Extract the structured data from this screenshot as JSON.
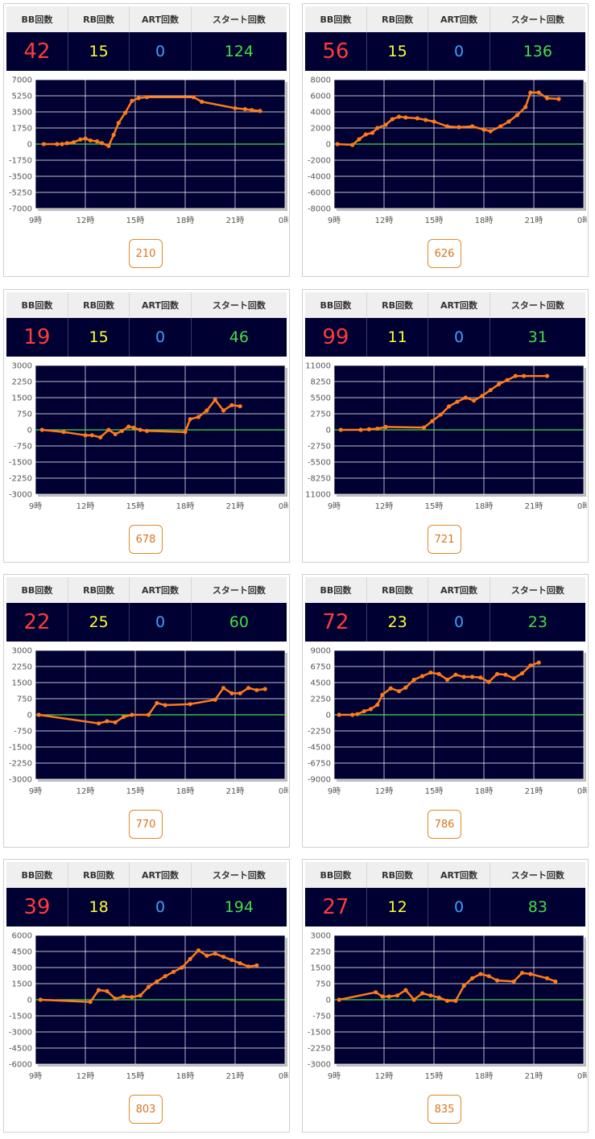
{
  "headers": {
    "bb": "BB回数",
    "rb": "RB回数",
    "art": "ART回数",
    "start": "スタート回数"
  },
  "colors": {
    "bb": "#ff3b3b",
    "rb": "#ffff33",
    "art": "#3aa0ff",
    "start": "#44dd44",
    "line": "#ff7a1a",
    "zero_line": "#44dd44",
    "plot_bg": "#000033",
    "grid": "#ffffff"
  },
  "machines": [
    {
      "bb": "42",
      "rb": "15",
      "art": "0",
      "start": "124",
      "game": "210"
    },
    {
      "bb": "56",
      "rb": "15",
      "art": "0",
      "start": "136",
      "game": "626"
    },
    {
      "bb": "19",
      "rb": "15",
      "art": "0",
      "start": "46",
      "game": "678"
    },
    {
      "bb": "99",
      "rb": "11",
      "art": "0",
      "start": "31",
      "game": "721"
    },
    {
      "bb": "22",
      "rb": "25",
      "art": "0",
      "start": "60",
      "game": "770"
    },
    {
      "bb": "72",
      "rb": "23",
      "art": "0",
      "start": "23",
      "game": "786"
    },
    {
      "bb": "39",
      "rb": "18",
      "art": "0",
      "start": "194",
      "game": "803"
    },
    {
      "bb": "27",
      "rb": "12",
      "art": "0",
      "start": "83",
      "game": "835"
    }
  ],
  "chart_data": [
    {
      "type": "line",
      "xlim": [
        9,
        24
      ],
      "x_ticks": [
        "9時",
        "12時",
        "15時",
        "18時",
        "21時",
        "0時"
      ],
      "ylim": [
        -7000,
        7000
      ],
      "y_ticks": [
        "7000",
        "5250",
        "3500",
        "1750",
        "0",
        "-1750",
        "-3500",
        "-5250",
        "-7000"
      ],
      "x": [
        9.5,
        10.3,
        10.6,
        10.9,
        11.3,
        11.7,
        12.0,
        12.3,
        12.7,
        13.0,
        13.4,
        13.7,
        14.0,
        14.4,
        14.8,
        15.2,
        15.7,
        18.5,
        19.0,
        21.0,
        21.6,
        22.0,
        22.5
      ],
      "y": [
        0,
        0,
        0,
        100,
        200,
        500,
        600,
        400,
        300,
        100,
        -200,
        1000,
        2300,
        3400,
        4700,
        5000,
        5100,
        5100,
        4600,
        3900,
        3800,
        3700,
        3600
      ]
    },
    {
      "type": "line",
      "xlim": [
        9,
        24
      ],
      "x_ticks": [
        "9時",
        "12時",
        "15時",
        "18時",
        "21時",
        "0時"
      ],
      "ylim": [
        -8000,
        8000
      ],
      "y_ticks": [
        "8000",
        "6000",
        "4000",
        "2000",
        "0",
        "-2000",
        "-4000",
        "-6000",
        "-8000"
      ],
      "x": [
        9.2,
        10.1,
        10.5,
        10.9,
        11.3,
        11.6,
        12.1,
        12.5,
        12.9,
        13.3,
        14.0,
        14.5,
        15.0,
        15.8,
        16.5,
        17.3,
        18.0,
        18.4,
        19.0,
        19.5,
        20.0,
        20.5,
        20.8,
        21.3,
        21.8,
        22.5
      ],
      "y": [
        0,
        -100,
        600,
        1200,
        1400,
        2000,
        2400,
        3100,
        3400,
        3300,
        3200,
        3000,
        2800,
        2200,
        2100,
        2200,
        1800,
        1600,
        2200,
        2800,
        3600,
        4600,
        6400,
        6400,
        5700,
        5600
      ]
    },
    {
      "type": "line",
      "xlim": [
        9,
        24
      ],
      "x_ticks": [
        "9時",
        "12時",
        "15時",
        "18時",
        "21時",
        "0時"
      ],
      "ylim": [
        -3000,
        3000
      ],
      "y_ticks": [
        "3000",
        "2250",
        "1500",
        "750",
        "0",
        "-750",
        "-1500",
        "-2250",
        "-3000"
      ],
      "x": [
        9.4,
        10.7,
        12.0,
        12.4,
        12.9,
        13.4,
        13.8,
        14.2,
        14.6,
        14.9,
        15.3,
        15.7,
        18.0,
        18.3,
        18.8,
        19.3,
        19.8,
        20.3,
        20.8,
        21.3
      ],
      "y": [
        0,
        -100,
        -250,
        -250,
        -350,
        0,
        -200,
        -50,
        150,
        100,
        0,
        -50,
        -100,
        500,
        600,
        900,
        1400,
        900,
        1150,
        1100
      ]
    },
    {
      "type": "line",
      "xlim": [
        9,
        24
      ],
      "x_ticks": [
        "9時",
        "12時",
        "15時",
        "18時",
        "21時",
        "0時"
      ],
      "ylim": [
        -11000,
        11000
      ],
      "y_ticks": [
        "11000",
        "8250",
        "5500",
        "2750",
        "0",
        "-2750",
        "-5500",
        "-8250",
        "-11000"
      ],
      "x": [
        9.4,
        10.6,
        11.1,
        11.6,
        12.1,
        14.4,
        14.9,
        15.4,
        15.9,
        16.4,
        16.9,
        17.4,
        17.9,
        18.4,
        18.9,
        19.4,
        19.9,
        20.4,
        21.8
      ],
      "y": [
        0,
        0,
        100,
        200,
        500,
        400,
        1500,
        2600,
        4000,
        4800,
        5500,
        5000,
        5800,
        6800,
        7800,
        8500,
        9200,
        9200,
        9200
      ]
    },
    {
      "type": "line",
      "xlim": [
        9,
        24
      ],
      "x_ticks": [
        "9時",
        "12時",
        "15時",
        "18時",
        "21時",
        "0時"
      ],
      "ylim": [
        -3000,
        3000
      ],
      "y_ticks": [
        "3000",
        "2250",
        "1500",
        "750",
        "0",
        "-750",
        "-1500",
        "-2250",
        "-3000"
      ],
      "x": [
        9.2,
        12.8,
        13.3,
        13.8,
        14.3,
        14.8,
        15.8,
        16.3,
        16.8,
        18.3,
        19.8,
        20.3,
        20.8,
        21.3,
        21.8,
        22.3,
        22.8
      ],
      "y": [
        0,
        -400,
        -300,
        -350,
        -100,
        0,
        0,
        550,
        450,
        500,
        700,
        1250,
        1000,
        1000,
        1250,
        1150,
        1200
      ]
    },
    {
      "type": "line",
      "xlim": [
        9,
        24
      ],
      "x_ticks": [
        "9時",
        "12時",
        "15時",
        "18時",
        "21時",
        "0時"
      ],
      "ylim": [
        -9000,
        9000
      ],
      "y_ticks": [
        "9000",
        "6750",
        "4500",
        "2250",
        "0",
        "-2250",
        "-4500",
        "-6750",
        "-9000"
      ],
      "x": [
        9.3,
        10.1,
        10.4,
        10.8,
        11.2,
        11.6,
        11.9,
        12.4,
        12.9,
        13.3,
        13.8,
        14.3,
        14.8,
        15.3,
        15.8,
        16.3,
        16.8,
        17.3,
        17.8,
        18.3,
        18.8,
        19.3,
        19.8,
        20.3,
        20.8,
        21.3
      ],
      "y": [
        0,
        0,
        100,
        500,
        800,
        1400,
        2800,
        3700,
        3300,
        3800,
        4900,
        5400,
        5900,
        5700,
        4900,
        5600,
        5300,
        5300,
        5200,
        4600,
        5700,
        5600,
        5100,
        5800,
        6900,
        7300
      ]
    },
    {
      "type": "line",
      "xlim": [
        9,
        24
      ],
      "x_ticks": [
        "9時",
        "12時",
        "15時",
        "18時",
        "21時",
        "0時"
      ],
      "ylim": [
        -6000,
        6000
      ],
      "y_ticks": [
        "6000",
        "4500",
        "3000",
        "1500",
        "0",
        "-1500",
        "-3000",
        "-4500",
        "-6000"
      ],
      "x": [
        9.3,
        12.3,
        12.8,
        13.3,
        13.8,
        14.3,
        14.8,
        15.3,
        15.8,
        16.3,
        16.8,
        17.3,
        17.8,
        18.3,
        18.8,
        19.3,
        19.8,
        20.3,
        20.8,
        21.3,
        21.8,
        22.3
      ],
      "y": [
        0,
        -200,
        900,
        800,
        100,
        300,
        250,
        400,
        1200,
        1700,
        2200,
        2600,
        3000,
        3800,
        4600,
        4100,
        4300,
        4000,
        3700,
        3400,
        3100,
        3200
      ]
    },
    {
      "type": "line",
      "xlim": [
        9,
        24
      ],
      "x_ticks": [
        "9時",
        "12時",
        "15時",
        "18時",
        "21時",
        "0時"
      ],
      "ylim": [
        -3000,
        3000
      ],
      "y_ticks": [
        "3000",
        "2250",
        "1500",
        "750",
        "0",
        "-750",
        "-1500",
        "-2250",
        "-3000"
      ],
      "x": [
        9.3,
        11.5,
        11.9,
        12.3,
        12.8,
        13.3,
        13.8,
        14.3,
        14.8,
        15.3,
        15.8,
        16.3,
        16.8,
        17.3,
        17.8,
        18.3,
        18.8,
        19.8,
        20.3,
        20.8,
        21.8,
        22.3
      ],
      "y": [
        0,
        350,
        150,
        150,
        200,
        450,
        0,
        300,
        200,
        100,
        -50,
        -50,
        650,
        1000,
        1200,
        1100,
        900,
        850,
        1250,
        1200,
        1000,
        850
      ]
    }
  ]
}
